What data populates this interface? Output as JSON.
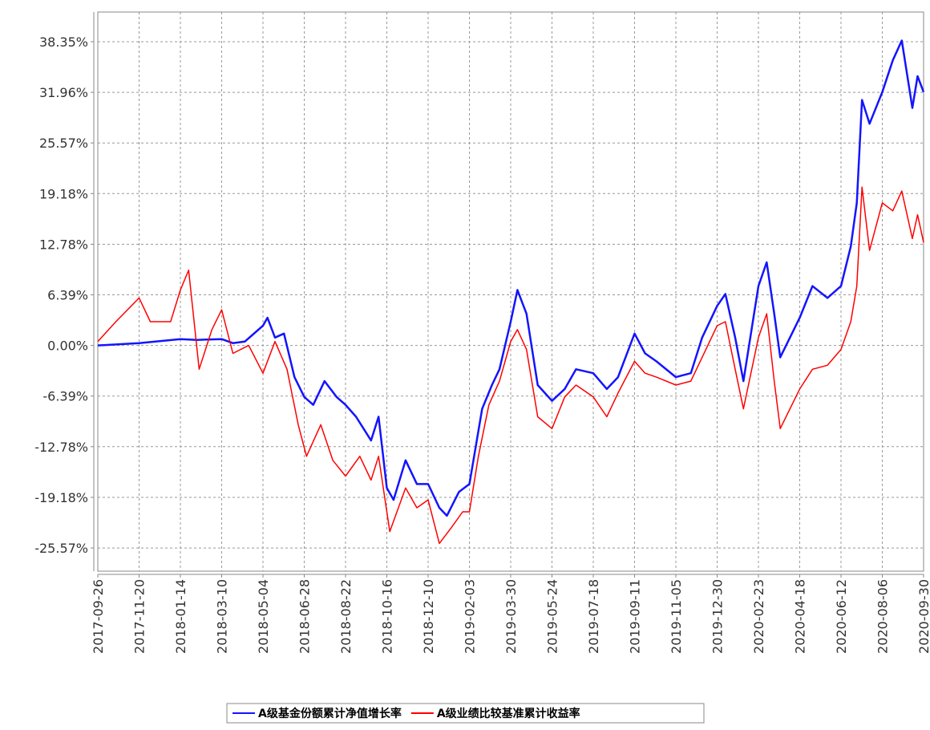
{
  "chart_data": {
    "type": "line",
    "xlim": [
      "2017-09-26",
      "2020-09-30"
    ],
    "xticks": [
      "2017-09-26",
      "2017-11-20",
      "2018-01-14",
      "2018-03-10",
      "2018-05-04",
      "2018-06-28",
      "2018-08-22",
      "2018-10-16",
      "2018-12-10",
      "2019-02-03",
      "2019-03-30",
      "2019-05-24",
      "2019-07-18",
      "2019-09-11",
      "2019-11-05",
      "2019-12-30",
      "2020-02-23",
      "2020-04-18",
      "2020-06-12",
      "2020-08-06",
      "2020-09-30"
    ],
    "ylim": [
      -28.5,
      42.1
    ],
    "yticks": [
      {
        "value": 38.35,
        "label": "38.35%"
      },
      {
        "value": 31.96,
        "label": "31.96%"
      },
      {
        "value": 25.57,
        "label": "25.57%"
      },
      {
        "value": 19.18,
        "label": "19.18%"
      },
      {
        "value": 12.78,
        "label": "12.78%"
      },
      {
        "value": 6.39,
        "label": "6.39%"
      },
      {
        "value": 0,
        "label": "0.00%"
      },
      {
        "value": -6.39,
        "label": "-6.39%"
      },
      {
        "value": -12.78,
        "label": "-12.78%"
      },
      {
        "value": -19.18,
        "label": "-19.18%"
      },
      {
        "value": -25.57,
        "label": "-25.57%"
      }
    ],
    "grid": true,
    "series": [
      {
        "name": "A级基金份额累计净值增长率",
        "color": "#1414ff",
        "x": [
          "2017-09-26",
          "2017-11-20",
          "2018-01-14",
          "2018-02-05",
          "2018-03-10",
          "2018-03-25",
          "2018-04-10",
          "2018-05-04",
          "2018-05-10",
          "2018-05-20",
          "2018-06-01",
          "2018-06-15",
          "2018-06-28",
          "2018-07-10",
          "2018-07-25",
          "2018-08-10",
          "2018-08-22",
          "2018-09-05",
          "2018-09-25",
          "2018-10-05",
          "2018-10-16",
          "2018-10-25",
          "2018-11-10",
          "2018-11-25",
          "2018-12-10",
          "2018-12-25",
          "2019-01-04",
          "2019-01-20",
          "2019-02-03",
          "2019-02-20",
          "2019-03-05",
          "2019-03-15",
          "2019-03-30",
          "2019-04-08",
          "2019-04-20",
          "2019-05-05",
          "2019-05-24",
          "2019-06-10",
          "2019-06-25",
          "2019-07-18",
          "2019-08-05",
          "2019-08-20",
          "2019-09-11",
          "2019-09-25",
          "2019-10-10",
          "2019-11-05",
          "2019-11-25",
          "2019-12-10",
          "2019-12-30",
          "2020-01-10",
          "2020-01-23",
          "2020-02-03",
          "2020-02-23",
          "2020-03-05",
          "2020-03-15",
          "2020-03-23",
          "2020-04-18",
          "2020-05-05",
          "2020-05-25",
          "2020-06-12",
          "2020-06-25",
          "2020-07-03",
          "2020-07-10",
          "2020-07-20",
          "2020-08-06",
          "2020-08-20",
          "2020-09-01",
          "2020-09-15",
          "2020-09-22",
          "2020-09-30"
        ],
        "values": [
          0,
          0.3,
          0.8,
          0.7,
          0.8,
          0.3,
          0.5,
          2.5,
          3.5,
          1.0,
          1.5,
          -4.0,
          -6.5,
          -7.5,
          -4.5,
          -6.5,
          -7.5,
          -9.0,
          -12.0,
          -9.0,
          -18.0,
          -19.5,
          -14.5,
          -17.5,
          -17.5,
          -20.5,
          -21.5,
          -18.5,
          -17.5,
          -8.0,
          -5.0,
          -3.0,
          3.0,
          7.0,
          4.0,
          -5.0,
          -7.0,
          -5.5,
          -3.0,
          -3.5,
          -5.5,
          -4.0,
          1.5,
          -1.0,
          -2.0,
          -4.0,
          -3.5,
          1.0,
          5.0,
          6.5,
          1.0,
          -4.5,
          7.5,
          10.5,
          4.0,
          -1.5,
          3.5,
          7.5,
          6.0,
          7.5,
          12.5,
          18.0,
          31.0,
          28.0,
          32.0,
          36.0,
          38.5,
          30.0,
          34.0,
          32.0
        ]
      },
      {
        "name": "A级业绩比较基准累计收益率",
        "color": "#ff0000",
        "x": [
          "2017-09-26",
          "2017-10-20",
          "2017-11-20",
          "2017-12-05",
          "2018-01-01",
          "2018-01-14",
          "2018-01-25",
          "2018-02-08",
          "2018-02-25",
          "2018-03-10",
          "2018-03-25",
          "2018-04-15",
          "2018-05-04",
          "2018-05-20",
          "2018-06-05",
          "2018-06-20",
          "2018-07-01",
          "2018-07-20",
          "2018-08-05",
          "2018-08-22",
          "2018-09-10",
          "2018-09-25",
          "2018-10-05",
          "2018-10-16",
          "2018-10-20",
          "2018-11-10",
          "2018-11-25",
          "2018-12-10",
          "2018-12-25",
          "2019-01-10",
          "2019-01-25",
          "2019-02-03",
          "2019-02-15",
          "2019-03-01",
          "2019-03-15",
          "2019-03-30",
          "2019-04-08",
          "2019-04-20",
          "2019-05-05",
          "2019-05-24",
          "2019-06-10",
          "2019-06-25",
          "2019-07-18",
          "2019-08-05",
          "2019-08-20",
          "2019-09-11",
          "2019-09-25",
          "2019-10-10",
          "2019-11-05",
          "2019-11-25",
          "2019-12-10",
          "2019-12-30",
          "2020-01-10",
          "2020-01-23",
          "2020-02-03",
          "2020-02-23",
          "2020-03-05",
          "2020-03-15",
          "2020-03-23",
          "2020-04-18",
          "2020-05-05",
          "2020-05-25",
          "2020-06-12",
          "2020-06-25",
          "2020-07-03",
          "2020-07-10",
          "2020-07-20",
          "2020-08-06",
          "2020-08-20",
          "2020-09-01",
          "2020-09-15",
          "2020-09-22",
          "2020-09-30"
        ],
        "values": [
          0.5,
          3.0,
          6.0,
          3.0,
          3.0,
          7.0,
          9.5,
          -3.0,
          2.0,
          4.5,
          -1.0,
          0,
          -3.5,
          0.5,
          -3.0,
          -10.0,
          -14.0,
          -10.0,
          -14.5,
          -16.5,
          -14.0,
          -17.0,
          -14.0,
          -21.0,
          -23.5,
          -18.0,
          -20.5,
          -19.5,
          -25.0,
          -23.0,
          -21.0,
          -21.0,
          -14.0,
          -7.5,
          -4.5,
          0.5,
          2.0,
          -0.5,
          -9.0,
          -10.5,
          -6.5,
          -5.0,
          -6.5,
          -9.0,
          -6.0,
          -2.0,
          -3.5,
          -4.0,
          -5.0,
          -4.5,
          -1.5,
          2.5,
          3.0,
          -3.0,
          -8.0,
          1.0,
          4.0,
          -4.5,
          -10.5,
          -5.5,
          -3.0,
          -2.5,
          -0.5,
          3.0,
          7.5,
          20.0,
          12.0,
          18.0,
          17.0,
          19.5,
          13.5,
          16.5,
          13.0
        ]
      }
    ]
  }
}
